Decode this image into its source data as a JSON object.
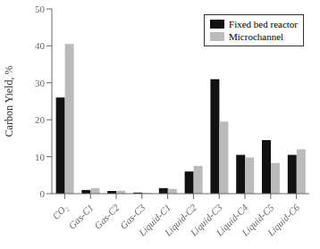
{
  "chart_data": {
    "type": "bar",
    "categories": [
      "CO₂",
      "Gas-C1",
      "Gas-C2",
      "Gas-C3",
      "Liquid-C1",
      "Liquid-C2",
      "Liquid-C3",
      "Liquid-C4",
      "Liquid-C5",
      "Liquid-C6"
    ],
    "series": [
      {
        "name": "Fixed bed reactor",
        "color": "#111111",
        "values": [
          26.0,
          1.0,
          0.7,
          0.3,
          1.5,
          6.0,
          31.0,
          10.5,
          14.5,
          10.5
        ]
      },
      {
        "name": "Microchannel",
        "color": "#bbbbbb",
        "values": [
          40.5,
          1.5,
          0.8,
          0.2,
          1.3,
          7.5,
          19.5,
          9.8,
          8.3,
          12.0
        ]
      }
    ],
    "ylabel": "Carbon Yield, %",
    "ylim": [
      0,
      50
    ],
    "yticks": [
      0,
      10,
      20,
      30,
      40,
      50
    ],
    "grid": false,
    "legend": "upper right"
  }
}
